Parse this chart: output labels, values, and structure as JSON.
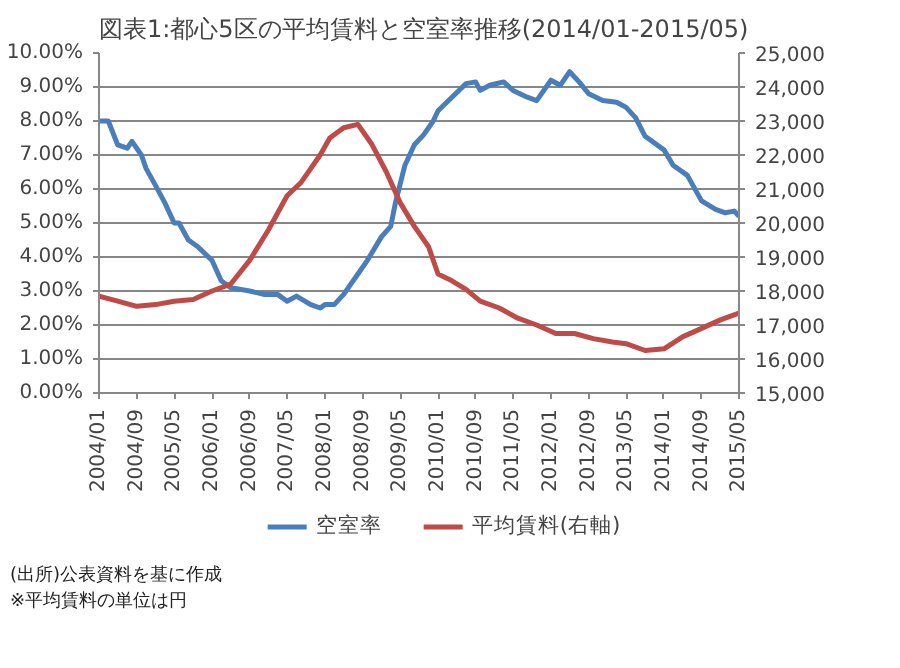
{
  "chart_data": {
    "type": "line",
    "title": "図表1:都心5区の平均賃料と空室率推移(2014/01-2015/05)",
    "annotations": [
      "(出所)公表資料を基に作成",
      "※平均賃料の単位は円"
    ],
    "series": [
      {
        "name": "空室率",
        "color": "#4a7ebb",
        "x": [
          "2004-01",
          "2004-03",
          "2004-05",
          "2004-07",
          "2004-08",
          "2004-10",
          "2004-11",
          "2005-01",
          "2005-03",
          "2005-05",
          "2005-06",
          "2005-08",
          "2005-10",
          "2006-01",
          "2006-03",
          "2006-05",
          "2006-09",
          "2006-12",
          "2007-03",
          "2007-05",
          "2007-07",
          "2007-10",
          "2007-12",
          "2008-01",
          "2008-03",
          "2008-05",
          "2008-08",
          "2008-10",
          "2009-01",
          "2009-03",
          "2009-04",
          "2009-06",
          "2009-08",
          "2009-10",
          "2009-12",
          "2010-01",
          "2010-04",
          "2010-07",
          "2010-09",
          "2010-10",
          "2010-12",
          "2011-03",
          "2011-05",
          "2011-08",
          "2011-10",
          "2012-01",
          "2012-03",
          "2012-05",
          "2012-07",
          "2012-09",
          "2012-12",
          "2013-03",
          "2013-05",
          "2013-07",
          "2013-09",
          "2014-01",
          "2014-03",
          "2014-06",
          "2014-09",
          "2014-12",
          "2015-02",
          "2015-04",
          "2015-05"
        ],
        "values": [
          8.0,
          8.0,
          7.3,
          7.2,
          7.4,
          7.0,
          6.6,
          6.1,
          5.6,
          5.0,
          5.0,
          4.5,
          4.3,
          3.9,
          3.3,
          3.1,
          3.0,
          2.9,
          2.9,
          2.7,
          2.85,
          2.6,
          2.5,
          2.6,
          2.6,
          2.9,
          3.5,
          3.9,
          4.6,
          4.9,
          5.6,
          6.7,
          7.3,
          7.6,
          8.0,
          8.3,
          8.7,
          9.1,
          9.15,
          8.9,
          9.05,
          9.15,
          8.9,
          8.7,
          8.6,
          9.2,
          9.05,
          9.45,
          9.15,
          8.8,
          8.6,
          8.55,
          8.4,
          8.1,
          7.55,
          7.15,
          6.7,
          6.4,
          5.65,
          5.4,
          5.3,
          5.35,
          5.2
        ]
      },
      {
        "name": "平均賃料(右軸)",
        "color": "#be4b48",
        "axis": "y2",
        "x": [
          "2004-01",
          "2004-05",
          "2004-09",
          "2005-01",
          "2005-05",
          "2005-09",
          "2006-01",
          "2006-05",
          "2006-09",
          "2007-01",
          "2007-05",
          "2007-08",
          "2007-12",
          "2008-02",
          "2008-05",
          "2008-08",
          "2008-11",
          "2009-02",
          "2009-05",
          "2009-08",
          "2009-11",
          "2010-01",
          "2010-04",
          "2010-07",
          "2010-10",
          "2011-02",
          "2011-06",
          "2011-10",
          "2012-02",
          "2012-06",
          "2012-10",
          "2013-02",
          "2013-05",
          "2013-09",
          "2014-01",
          "2014-05",
          "2014-09",
          "2015-01",
          "2015-05"
        ],
        "values": [
          17850,
          17700,
          17550,
          17600,
          17700,
          17750,
          18000,
          18200,
          18900,
          19800,
          20800,
          21200,
          22000,
          22500,
          22800,
          22900,
          22300,
          21500,
          20600,
          19900,
          19300,
          18500,
          18300,
          18050,
          17700,
          17500,
          17200,
          17000,
          16750,
          16750,
          16600,
          16500,
          16450,
          16250,
          16300,
          16650,
          16900,
          17150,
          17350
        ]
      }
    ],
    "xlim": [
      "2004-01",
      "2015-05"
    ],
    "xticks": [
      {
        "value": "2004-01",
        "label": "2004/01"
      },
      {
        "value": "2004-09",
        "label": "2004/09"
      },
      {
        "value": "2005-05",
        "label": "2005/05"
      },
      {
        "value": "2006-01",
        "label": "2006/01"
      },
      {
        "value": "2006-09",
        "label": "2006/09"
      },
      {
        "value": "2007-05",
        "label": "2007/05"
      },
      {
        "value": "2008-01",
        "label": "2008/01"
      },
      {
        "value": "2008-09",
        "label": "2008/09"
      },
      {
        "value": "2009-05",
        "label": "2009/05"
      },
      {
        "value": "2010-01",
        "label": "2010/01"
      },
      {
        "value": "2010-09",
        "label": "2010/09"
      },
      {
        "value": "2011-05",
        "label": "2011/05"
      },
      {
        "value": "2012-01",
        "label": "2012/01"
      },
      {
        "value": "2012-09",
        "label": "2012/09"
      },
      {
        "value": "2013-05",
        "label": "2013/05"
      },
      {
        "value": "2014-01",
        "label": "2014/01"
      },
      {
        "value": "2014-09",
        "label": "2014/09"
      },
      {
        "value": "2015-05",
        "label": "2015/05"
      }
    ],
    "ylim": [
      0,
      10
    ],
    "yticks": [
      {
        "value": 0,
        "label": "0.00%"
      },
      {
        "value": 1,
        "label": "1.00%"
      },
      {
        "value": 2,
        "label": "2.00%"
      },
      {
        "value": 3,
        "label": "3.00%"
      },
      {
        "value": 4,
        "label": "4.00%"
      },
      {
        "value": 5,
        "label": "5.00%"
      },
      {
        "value": 6,
        "label": "6.00%"
      },
      {
        "value": 7,
        "label": "7.00%"
      },
      {
        "value": 8,
        "label": "8.00%"
      },
      {
        "value": 9,
        "label": "9.00%"
      },
      {
        "value": 10,
        "label": "10.00%"
      }
    ],
    "y2lim": [
      15000,
      25000
    ],
    "y2ticks": [
      {
        "value": 15000,
        "label": "15,000"
      },
      {
        "value": 16000,
        "label": "16,000"
      },
      {
        "value": 17000,
        "label": "17,000"
      },
      {
        "value": 18000,
        "label": "18,000"
      },
      {
        "value": 19000,
        "label": "19,000"
      },
      {
        "value": 20000,
        "label": "20,000"
      },
      {
        "value": 21000,
        "label": "21,000"
      },
      {
        "value": 22000,
        "label": "22,000"
      },
      {
        "value": 23000,
        "label": "23,000"
      },
      {
        "value": 24000,
        "label": "24,000"
      },
      {
        "value": 25000,
        "label": "25,000"
      }
    ],
    "grid": "y",
    "legend": "bottom",
    "marker": "none",
    "line_style": "solid"
  }
}
